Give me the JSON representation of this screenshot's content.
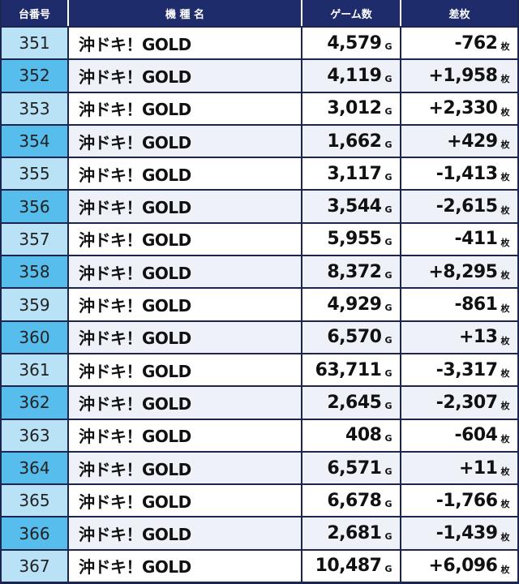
{
  "header": {
    "machine_no": "台番号",
    "model": "機 種 名",
    "games": "ゲーム数",
    "diff": "差枚"
  },
  "units": {
    "games": "G",
    "diff": "枚"
  },
  "colors": {
    "header_bg": "#1f2c6b",
    "no_odd_bg": "#b9e2f7",
    "no_even_bg": "#57bdec",
    "row_even_bg": "#eef1f8"
  },
  "rows": [
    {
      "no": "351",
      "name": "沖ドキ！GOLD",
      "games": "4,579",
      "diff": "-762"
    },
    {
      "no": "352",
      "name": "沖ドキ！GOLD",
      "games": "4,119",
      "diff": "+1,958"
    },
    {
      "no": "353",
      "name": "沖ドキ！GOLD",
      "games": "3,012",
      "diff": "+2,330"
    },
    {
      "no": "354",
      "name": "沖ドキ！GOLD",
      "games": "1,662",
      "diff": "+429"
    },
    {
      "no": "355",
      "name": "沖ドキ！GOLD",
      "games": "3,117",
      "diff": "-1,413"
    },
    {
      "no": "356",
      "name": "沖ドキ！GOLD",
      "games": "3,544",
      "diff": "-2,615"
    },
    {
      "no": "357",
      "name": "沖ドキ！GOLD",
      "games": "5,955",
      "diff": "-411"
    },
    {
      "no": "358",
      "name": "沖ドキ！GOLD",
      "games": "8,372",
      "diff": "+8,295"
    },
    {
      "no": "359",
      "name": "沖ドキ！GOLD",
      "games": "4,929",
      "diff": "-861"
    },
    {
      "no": "360",
      "name": "沖ドキ！GOLD",
      "games": "6,570",
      "diff": "+13"
    },
    {
      "no": "361",
      "name": "沖ドキ！GOLD",
      "games": "63,711",
      "diff": "-3,317"
    },
    {
      "no": "362",
      "name": "沖ドキ！GOLD",
      "games": "2,645",
      "diff": "-2,307"
    },
    {
      "no": "363",
      "name": "沖ドキ！GOLD",
      "games": "408",
      "diff": "-604"
    },
    {
      "no": "364",
      "name": "沖ドキ！GOLD",
      "games": "6,571",
      "diff": "+11"
    },
    {
      "no": "365",
      "name": "沖ドキ！GOLD",
      "games": "6,678",
      "diff": "-1,766"
    },
    {
      "no": "366",
      "name": "沖ドキ！GOLD",
      "games": "2,681",
      "diff": "-1,439"
    },
    {
      "no": "367",
      "name": "沖ドキ！GOLD",
      "games": "10,487",
      "diff": "+6,096"
    }
  ]
}
